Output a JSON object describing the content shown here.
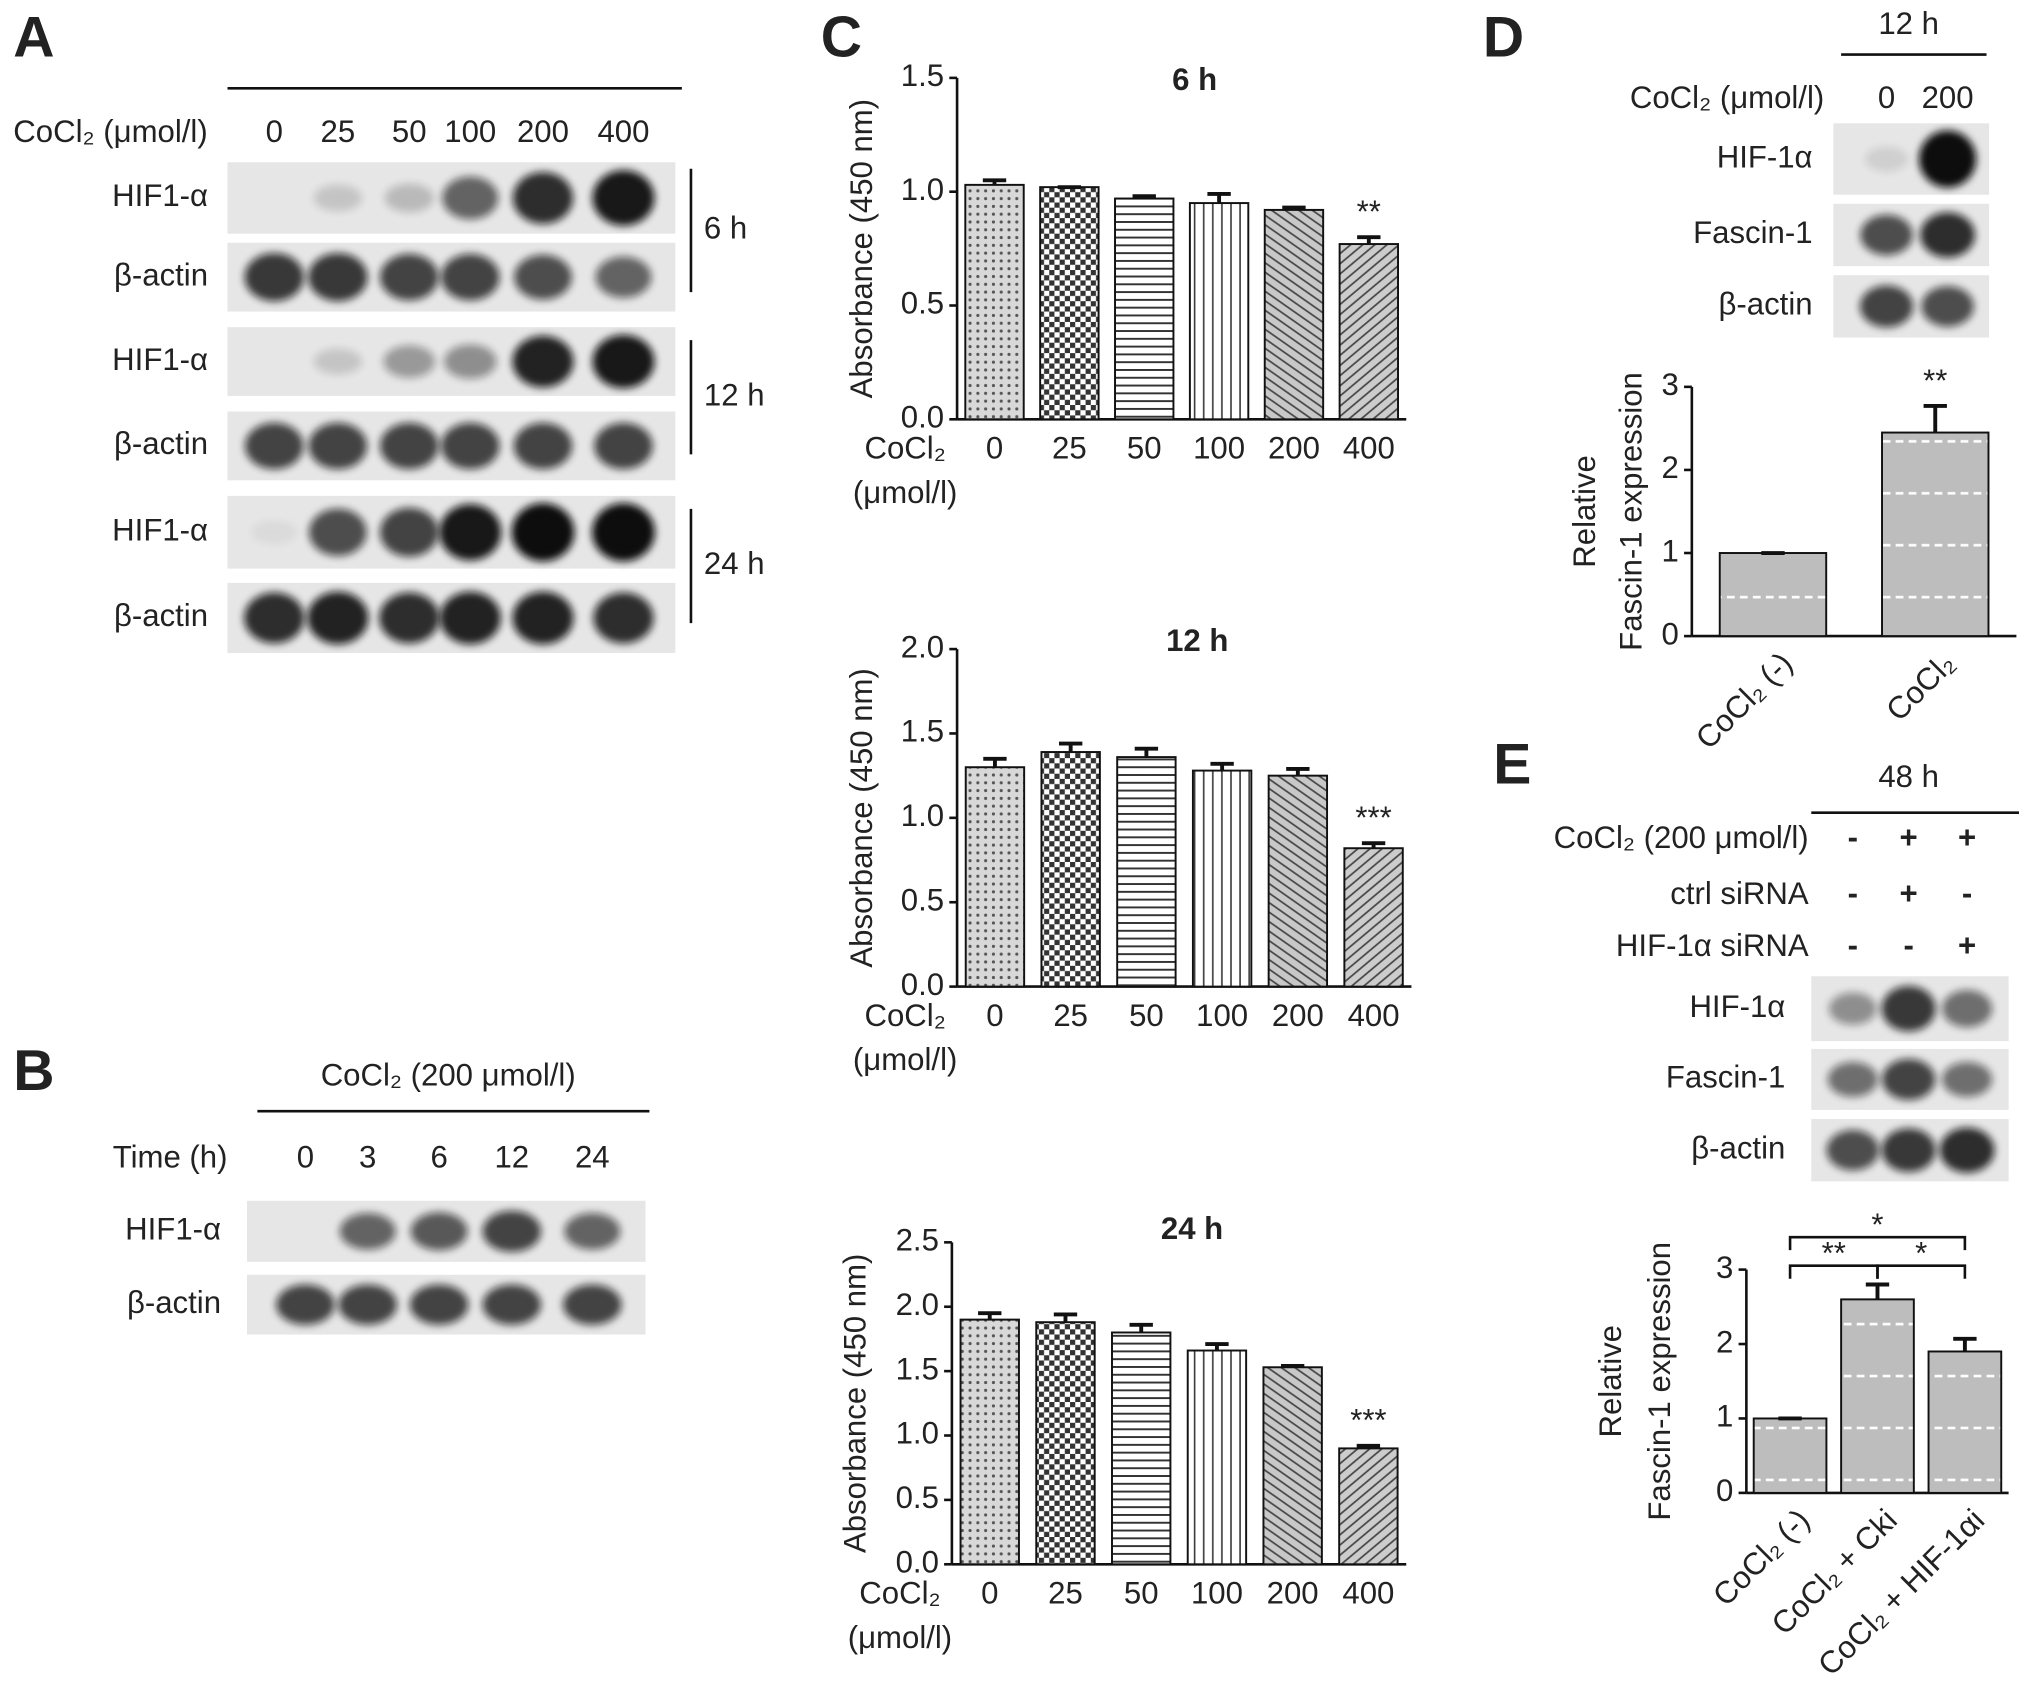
{
  "panels": {
    "A": {
      "letter": "A",
      "treatment": "CoCl₂ (μmol/l)",
      "lanes": [
        "0",
        "25",
        "50",
        "100",
        "200",
        "400"
      ],
      "rows": [
        "HIF1-α",
        "β-actin",
        "HIF1-α",
        "β-actin",
        "HIF1-α",
        "β-actin"
      ],
      "times": [
        "6 h",
        "12 h",
        "24 h"
      ]
    },
    "B": {
      "letter": "B",
      "treatment": "CoCl₂ (200 μmol/l)",
      "lane_title": "Time (h)",
      "lanes": [
        "0",
        "3",
        "6",
        "12",
        "24"
      ],
      "rows": [
        "HIF1-α",
        "β-actin"
      ]
    },
    "C": {
      "letter": "C"
    },
    "D": {
      "letter": "D",
      "time": "12 h",
      "treatment": "CoCl₂ (μmol/l)",
      "lanes": [
        "0",
        "200"
      ],
      "rows": [
        "HIF-1α",
        "Fascin-1",
        "β-actin"
      ]
    },
    "E": {
      "letter": "E",
      "time": "48 h",
      "conditions": [
        {
          "name": "CoCl₂ (200 μmol/l)",
          "signs": [
            "-",
            "+",
            "+"
          ]
        },
        {
          "name": "ctrl siRNA",
          "signs": [
            "-",
            "+",
            "-"
          ]
        },
        {
          "name": "HIF-1α siRNA",
          "signs": [
            "-",
            "-",
            "+"
          ]
        }
      ],
      "rows": [
        "HIF-1α",
        "Fascin-1",
        "β-actin"
      ]
    }
  },
  "chart_data": [
    {
      "type": "bar",
      "title": "6 h",
      "ylabel": [
        "Absorbance (450 nm)"
      ],
      "xlabel": [
        "CoCl₂",
        "(μmol/l)"
      ],
      "categories": [
        "0",
        "25",
        "50",
        "100",
        "200",
        "400"
      ],
      "values": [
        1.03,
        1.02,
        0.97,
        0.95,
        0.92,
        0.77
      ],
      "errors": [
        0.02,
        0,
        0.01,
        0.04,
        0.01,
        0.03
      ],
      "ylim": [
        0,
        1.5
      ],
      "yticks": [
        {
          "value": 0,
          "label": "0.0"
        },
        {
          "value": 0.5,
          "label": "0.5"
        },
        {
          "value": 1,
          "label": "1.0"
        },
        {
          "value": 1.5,
          "label": "1.5"
        }
      ],
      "annotations": [
        {
          "label": "**",
          "category": "400"
        }
      ]
    },
    {
      "type": "bar",
      "title": "12 h",
      "ylabel": [
        "Absorbance (450 nm)"
      ],
      "xlabel": [
        "CoCl₂",
        "(μmol/l)"
      ],
      "categories": [
        "0",
        "25",
        "50",
        "100",
        "200",
        "400"
      ],
      "values": [
        1.3,
        1.39,
        1.36,
        1.28,
        1.25,
        0.82
      ],
      "errors": [
        0.05,
        0.05,
        0.05,
        0.04,
        0.04,
        0.03
      ],
      "ylim": [
        0,
        2
      ],
      "yticks": [
        {
          "value": 0,
          "label": "0.0"
        },
        {
          "value": 0.5,
          "label": "0.5"
        },
        {
          "value": 1,
          "label": "1.0"
        },
        {
          "value": 1.5,
          "label": "1.5"
        },
        {
          "value": 2,
          "label": "2.0"
        }
      ],
      "annotations": [
        {
          "label": "***",
          "category": "400"
        }
      ]
    },
    {
      "type": "bar",
      "title": "24 h",
      "ylabel": [
        "Absorbance (450 nm)"
      ],
      "xlabel": [
        "CoCl₂",
        "(μmol/l)"
      ],
      "categories": [
        "0",
        "25",
        "50",
        "100",
        "200",
        "400"
      ],
      "values": [
        1.9,
        1.88,
        1.8,
        1.66,
        1.53,
        0.9
      ],
      "errors": [
        0.05,
        0.06,
        0.06,
        0.05,
        0.01,
        0.02
      ],
      "ylim": [
        0,
        2.5
      ],
      "yticks": [
        {
          "value": 0,
          "label": "0.0"
        },
        {
          "value": 0.5,
          "label": "0.5"
        },
        {
          "value": 1,
          "label": "1.0"
        },
        {
          "value": 1.5,
          "label": "1.5"
        },
        {
          "value": 2,
          "label": "2.0"
        },
        {
          "value": 2.5,
          "label": "2.5"
        }
      ],
      "annotations": [
        {
          "label": "***",
          "category": "400"
        }
      ]
    },
    {
      "type": "bar",
      "ylabel": [
        "Relative",
        "Fascin-1 expression"
      ],
      "categories": [
        "CoCl₂ (-)",
        "CoCl₂"
      ],
      "values": [
        1,
        2.45
      ],
      "errors": [
        0,
        0.32
      ],
      "ylim": [
        0,
        3
      ],
      "yticks": [
        0,
        1,
        2,
        3
      ],
      "annotations": [
        {
          "label": "**",
          "category": "CoCl₂"
        }
      ]
    },
    {
      "type": "bar",
      "ylabel": [
        "Relative",
        "Fascin-1 expression"
      ],
      "categories": [
        "CoCl₂ (-)",
        "CoCl₂ + Cki",
        "CoCl₂ + HIF-1αi"
      ],
      "values": [
        1,
        2.6,
        1.9
      ],
      "errors": [
        0,
        0.2,
        0.17
      ],
      "ylim": [
        0,
        3
      ],
      "yticks": [
        0,
        1,
        2,
        3
      ],
      "significance": [
        {
          "label": "*",
          "from": "CoCl₂ (-)",
          "to": "CoCl₂ + HIF-1αi"
        },
        {
          "label": "**",
          "from": "CoCl₂ (-)",
          "to": "CoCl₂ + Cki"
        },
        {
          "label": "*",
          "from": "CoCl₂ + Cki",
          "to": "CoCl₂ + HIF-1αi"
        }
      ]
    }
  ]
}
